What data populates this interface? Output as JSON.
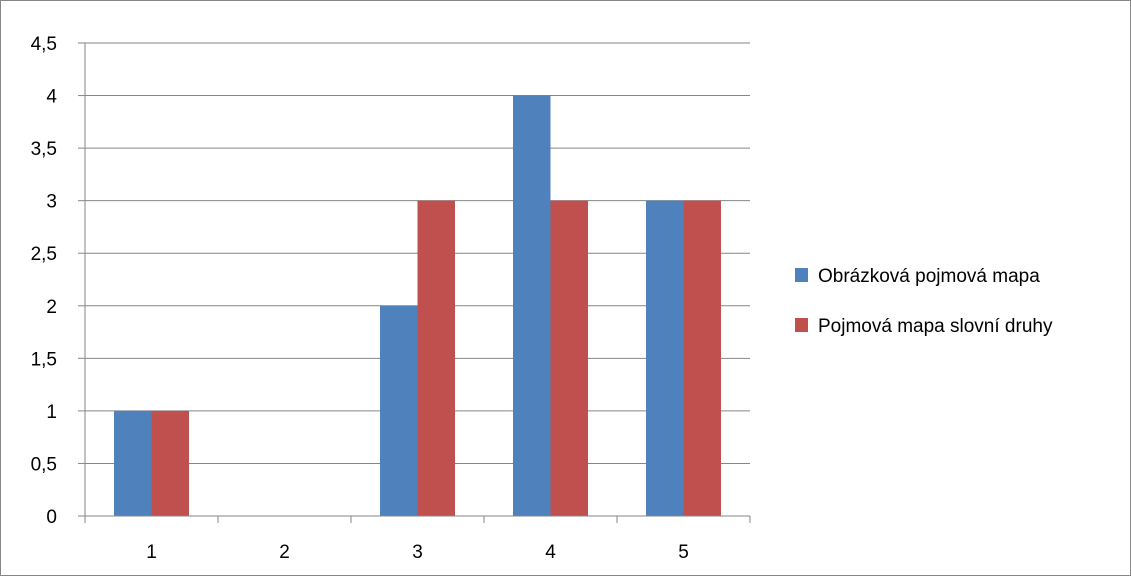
{
  "chart_data": {
    "type": "bar",
    "categories": [
      "1",
      "2",
      "3",
      "4",
      "5"
    ],
    "series": [
      {
        "name": "Obrázková pojmová mapa",
        "values": [
          1,
          0,
          2,
          4,
          3
        ],
        "color": "#4F81BD"
      },
      {
        "name": "Pojmová mapa slovní druhy",
        "values": [
          1,
          0,
          3,
          3,
          3
        ],
        "color": "#C0504D"
      }
    ],
    "ylim": [
      0,
      4.5
    ],
    "yticks": [
      "0",
      "0,5",
      "1",
      "1,5",
      "2",
      "2,5",
      "3",
      "3,5",
      "4",
      "4,5"
    ],
    "grid": true,
    "legend_position": "right",
    "title": "",
    "xlabel": "",
    "ylabel": ""
  }
}
